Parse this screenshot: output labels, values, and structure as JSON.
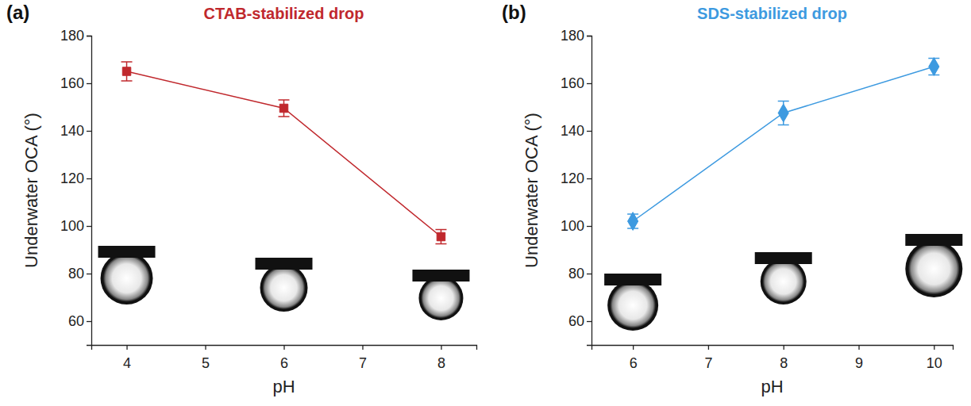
{
  "chart_data": [
    {
      "type": "line",
      "panel_label": "(a)",
      "title": "CTAB-stabilized drop",
      "x_label": "pH",
      "y_label": "Underwater OCA (°)",
      "x": [
        4,
        6,
        8
      ],
      "values": [
        165,
        149.5,
        95.5
      ],
      "errors": [
        4,
        3.5,
        3
      ],
      "color": "#c0282d",
      "marker": "square",
      "xlim": [
        3.55,
        8.45
      ],
      "xticks": [
        4,
        5,
        6,
        7,
        8
      ],
      "ylim": [
        50,
        180
      ],
      "yticks": [
        60,
        80,
        100,
        120,
        140,
        160,
        180
      ]
    },
    {
      "type": "line",
      "panel_label": "(b)",
      "title": "SDS-stabilized drop",
      "x_label": "pH",
      "y_label": "Underwater OCA (°)",
      "x": [
        6,
        8,
        10
      ],
      "values": [
        102,
        147.5,
        167
      ],
      "errors": [
        3,
        5,
        3.5
      ],
      "color": "#3d9ae0",
      "marker": "diamond",
      "xlim": [
        5.45,
        10.25
      ],
      "xticks": [
        6,
        7,
        8,
        9,
        10
      ],
      "ylim": [
        50,
        180
      ],
      "yticks": [
        60,
        80,
        100,
        120,
        140,
        160,
        180
      ]
    }
  ]
}
